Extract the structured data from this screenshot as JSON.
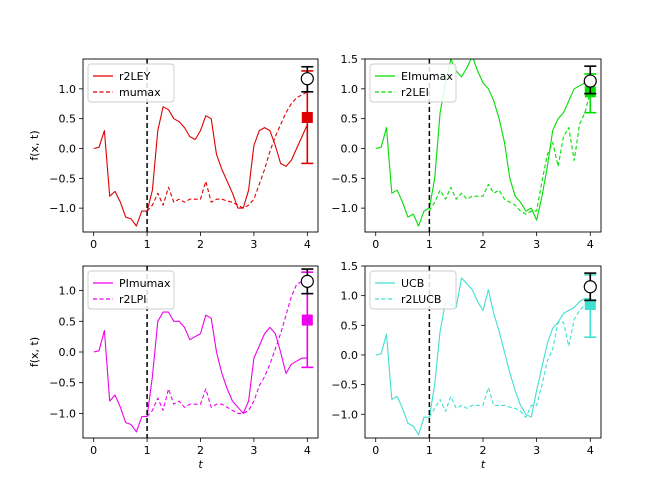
{
  "chart_data": [
    {
      "type": "line",
      "xlabel": "",
      "ylabel": "f(x, t)",
      "xlim": [
        -0.2,
        4.2
      ],
      "ylim": [
        -1.4,
        1.5
      ],
      "xticks": [
        "0",
        "1",
        "2",
        "3",
        "4"
      ],
      "yticks": [
        "−1.0",
        "−0.5",
        "0.0",
        "0.5",
        "1.0"
      ],
      "color": "#dd0000",
      "legend_position": "top-left",
      "vline_x": 1,
      "series": [
        {
          "name": "r2LEY",
          "style": "solid",
          "x": [
            0,
            0.1,
            0.2,
            0.3,
            0.4,
            0.5,
            0.6,
            0.7,
            0.8,
            0.9,
            1.0,
            1.1,
            1.2,
            1.3,
            1.4,
            1.5,
            1.6,
            1.7,
            1.8,
            1.9,
            2.0,
            2.1,
            2.2,
            2.3,
            2.4,
            2.5,
            2.6,
            2.7,
            2.8,
            2.9,
            3.0,
            3.1,
            3.2,
            3.3,
            3.4,
            3.5,
            3.6,
            3.7,
            3.8,
            3.9,
            4.0
          ],
          "y": [
            0.0,
            0.02,
            0.3,
            -0.8,
            -0.72,
            -0.9,
            -1.15,
            -1.18,
            -1.3,
            -1.05,
            -1.05,
            -0.7,
            0.3,
            0.7,
            0.65,
            0.5,
            0.45,
            0.35,
            0.2,
            0.15,
            0.3,
            0.55,
            0.5,
            -0.1,
            -0.35,
            -0.55,
            -0.75,
            -1.0,
            -1.0,
            -0.7,
            0.05,
            0.3,
            0.35,
            0.3,
            0.05,
            -0.25,
            -0.3,
            -0.2,
            0.0,
            0.2,
            0.4
          ]
        },
        {
          "name": "mumax",
          "style": "dashed",
          "x": [
            1.0,
            1.1,
            1.2,
            1.3,
            1.4,
            1.5,
            1.6,
            1.7,
            1.8,
            1.9,
            2.0,
            2.1,
            2.2,
            2.3,
            2.4,
            2.5,
            2.6,
            2.7,
            2.8,
            2.9,
            3.0,
            3.1,
            3.2,
            3.3,
            3.4,
            3.5,
            3.6,
            3.7,
            3.8,
            3.9,
            4.0
          ],
          "y": [
            -1.05,
            -0.95,
            -0.75,
            -0.95,
            -0.65,
            -0.9,
            -0.85,
            -0.9,
            -0.85,
            -0.85,
            -0.85,
            -0.55,
            -0.9,
            -0.85,
            -0.85,
            -0.88,
            -0.9,
            -0.95,
            -1.0,
            -0.95,
            -0.85,
            -0.6,
            -0.35,
            -0.05,
            0.2,
            0.4,
            0.6,
            0.75,
            0.85,
            0.9,
            0.95
          ]
        }
      ],
      "errorbars": [
        {
          "label": "marker-open",
          "x": 4,
          "y": 1.17,
          "low": 0.95,
          "high": 1.37,
          "marker": "circle-open",
          "color": "#000000"
        },
        {
          "label": "marker-filled",
          "x": 4,
          "y": 0.52,
          "low": -0.25,
          "high": 1.3,
          "marker": "square",
          "color": "#dd0000"
        }
      ]
    },
    {
      "type": "line",
      "xlabel": "",
      "ylabel": "",
      "xlim": [
        -0.2,
        4.2
      ],
      "ylim": [
        -1.4,
        1.5
      ],
      "xticks": [
        "0",
        "1",
        "2",
        "3",
        "4"
      ],
      "yticks": [
        "−1.0",
        "−0.5",
        "0.0",
        "0.5",
        "1.0",
        "1.5"
      ],
      "color": "#00dd00",
      "legend_position": "top-left",
      "vline_x": 1,
      "series": [
        {
          "name": "EImumax",
          "style": "solid",
          "x": [
            0,
            0.1,
            0.2,
            0.3,
            0.4,
            0.5,
            0.6,
            0.7,
            0.8,
            0.9,
            1.0,
            1.1,
            1.2,
            1.3,
            1.4,
            1.5,
            1.6,
            1.7,
            1.8,
            1.9,
            2.0,
            2.1,
            2.2,
            2.3,
            2.4,
            2.5,
            2.6,
            2.7,
            2.8,
            2.9,
            3.0,
            3.1,
            3.2,
            3.3,
            3.4,
            3.5,
            3.6,
            3.7,
            3.8,
            3.9,
            4.0
          ],
          "y": [
            0.0,
            0.02,
            0.35,
            -0.75,
            -0.7,
            -0.9,
            -1.15,
            -1.1,
            -1.3,
            -1.05,
            -1.0,
            -0.5,
            0.6,
            1.1,
            1.5,
            1.3,
            1.2,
            1.35,
            1.55,
            1.3,
            1.1,
            1.0,
            0.8,
            0.5,
            0.1,
            -0.5,
            -0.8,
            -0.9,
            -1.05,
            -1.0,
            -1.2,
            -0.8,
            -0.3,
            0.3,
            0.5,
            0.6,
            0.8,
            1.0,
            1.05,
            1.1,
            1.15
          ]
        },
        {
          "name": "r2LEI",
          "style": "dashed",
          "x": [
            1.0,
            1.1,
            1.2,
            1.3,
            1.4,
            1.5,
            1.6,
            1.7,
            1.8,
            1.9,
            2.0,
            2.1,
            2.2,
            2.3,
            2.4,
            2.5,
            2.6,
            2.7,
            2.8,
            2.9,
            3.0,
            3.1,
            3.2,
            3.3,
            3.4,
            3.5,
            3.6,
            3.7,
            3.8,
            3.9,
            4.0
          ],
          "y": [
            -1.05,
            -0.9,
            -0.7,
            -0.85,
            -0.65,
            -0.85,
            -0.75,
            -0.85,
            -0.8,
            -0.8,
            -0.8,
            -0.6,
            -0.75,
            -0.7,
            -0.85,
            -0.9,
            -0.95,
            -1.05,
            -1.1,
            -1.05,
            -1.05,
            -0.55,
            -0.1,
            0.1,
            -0.3,
            0.2,
            0.35,
            -0.2,
            0.4,
            0.6,
            0.95
          ]
        }
      ],
      "errorbars": [
        {
          "label": "marker-open",
          "x": 4,
          "y": 1.13,
          "low": 0.92,
          "high": 1.38,
          "marker": "circle-open",
          "color": "#000000"
        },
        {
          "label": "marker-filled",
          "x": 4,
          "y": 0.95,
          "low": 0.6,
          "high": 1.25,
          "marker": "square",
          "color": "#00dd00"
        }
      ]
    },
    {
      "type": "line",
      "xlabel": "t",
      "ylabel": "f(x, t)",
      "xlim": [
        -0.2,
        4.2
      ],
      "ylim": [
        -1.4,
        1.4
      ],
      "xticks": [
        "0",
        "1",
        "2",
        "3",
        "4"
      ],
      "yticks": [
        "−1.0",
        "−0.5",
        "0.0",
        "0.5",
        "1.0"
      ],
      "color": "#ee00ee",
      "legend_position": "top-left",
      "vline_x": 1,
      "series": [
        {
          "name": "PImumax",
          "style": "solid",
          "x": [
            0,
            0.1,
            0.2,
            0.3,
            0.4,
            0.5,
            0.6,
            0.7,
            0.8,
            0.9,
            1.0,
            1.1,
            1.2,
            1.3,
            1.4,
            1.5,
            1.6,
            1.7,
            1.8,
            1.9,
            2.0,
            2.1,
            2.2,
            2.3,
            2.4,
            2.5,
            2.6,
            2.7,
            2.8,
            2.9,
            3.0,
            3.1,
            3.2,
            3.3,
            3.4,
            3.5,
            3.6,
            3.7,
            3.8,
            3.9,
            4.0
          ],
          "y": [
            0.0,
            0.02,
            0.35,
            -0.8,
            -0.7,
            -0.9,
            -1.15,
            -1.18,
            -1.3,
            -1.05,
            -1.05,
            -0.4,
            0.5,
            0.65,
            0.65,
            0.5,
            0.5,
            0.4,
            0.2,
            0.25,
            0.3,
            0.6,
            0.55,
            0.0,
            -0.35,
            -0.6,
            -0.8,
            -0.9,
            -1.0,
            -0.8,
            -0.1,
            0.1,
            0.3,
            0.4,
            0.3,
            0.0,
            -0.35,
            -0.2,
            -0.15,
            -0.1,
            -0.1
          ]
        },
        {
          "name": "r2LPI",
          "style": "dashed",
          "x": [
            1.0,
            1.1,
            1.2,
            1.3,
            1.4,
            1.5,
            1.6,
            1.7,
            1.8,
            1.9,
            2.0,
            2.1,
            2.2,
            2.3,
            2.4,
            2.5,
            2.6,
            2.7,
            2.8,
            2.9,
            3.0,
            3.1,
            3.2,
            3.3,
            3.4,
            3.5,
            3.6,
            3.7,
            3.8,
            3.9,
            4.0
          ],
          "y": [
            -1.05,
            -0.95,
            -0.75,
            -0.95,
            -0.6,
            -0.85,
            -0.8,
            -0.9,
            -0.85,
            -0.85,
            -0.85,
            -0.6,
            -0.9,
            -0.85,
            -0.85,
            -0.9,
            -0.95,
            -1.0,
            -1.0,
            -0.95,
            -0.8,
            -0.55,
            -0.4,
            -0.2,
            0.05,
            0.3,
            0.6,
            0.9,
            1.1,
            1.15,
            1.2
          ]
        }
      ],
      "errorbars": [
        {
          "label": "marker-open",
          "x": 4,
          "y": 1.15,
          "low": 0.95,
          "high": 1.35,
          "marker": "circle-open",
          "color": "#000000"
        },
        {
          "label": "marker-filled",
          "x": 4,
          "y": 0.52,
          "low": -0.25,
          "high": 1.3,
          "marker": "square",
          "color": "#ee00ee"
        }
      ]
    },
    {
      "type": "line",
      "xlabel": "t",
      "ylabel": "",
      "xlim": [
        -0.2,
        4.2
      ],
      "ylim": [
        -1.4,
        1.5
      ],
      "xticks": [
        "0",
        "1",
        "2",
        "3",
        "4"
      ],
      "yticks": [
        "−1.0",
        "−0.5",
        "0.0",
        "0.5",
        "1.0",
        "1.5"
      ],
      "color": "#40e0d0",
      "legend_position": "top-left",
      "vline_x": 1,
      "series": [
        {
          "name": "UCB",
          "style": "solid",
          "x": [
            0,
            0.1,
            0.2,
            0.3,
            0.4,
            0.5,
            0.6,
            0.7,
            0.8,
            0.9,
            1.0,
            1.1,
            1.2,
            1.3,
            1.4,
            1.5,
            1.6,
            1.7,
            1.8,
            1.9,
            2.0,
            2.1,
            2.2,
            2.3,
            2.4,
            2.5,
            2.6,
            2.7,
            2.8,
            2.9,
            3.0,
            3.1,
            3.2,
            3.3,
            3.4,
            3.5,
            3.6,
            3.7,
            3.8,
            3.9,
            4.0
          ],
          "y": [
            0.0,
            0.02,
            0.35,
            -0.75,
            -0.7,
            -0.9,
            -1.15,
            -1.2,
            -1.35,
            -1.05,
            -1.05,
            -0.5,
            0.4,
            0.9,
            0.85,
            0.8,
            1.3,
            1.2,
            1.1,
            0.9,
            0.75,
            1.1,
            0.7,
            0.4,
            0.05,
            -0.3,
            -0.6,
            -0.85,
            -1.0,
            -1.05,
            -0.6,
            -0.2,
            0.2,
            0.45,
            0.55,
            0.7,
            0.75,
            0.8,
            0.9,
            0.95,
            0.95
          ]
        },
        {
          "name": "r2LUCB",
          "style": "dashed",
          "x": [
            1.0,
            1.1,
            1.2,
            1.3,
            1.4,
            1.5,
            1.6,
            1.7,
            1.8,
            1.9,
            2.0,
            2.1,
            2.2,
            2.3,
            2.4,
            2.5,
            2.6,
            2.7,
            2.8,
            2.9,
            3.0,
            3.1,
            3.2,
            3.3,
            3.4,
            3.5,
            3.6,
            3.7,
            3.8,
            3.9,
            4.0
          ],
          "y": [
            -1.05,
            -0.9,
            -0.75,
            -0.95,
            -0.7,
            -0.9,
            -0.85,
            -0.9,
            -0.85,
            -0.85,
            -0.85,
            -0.55,
            -0.85,
            -0.85,
            -0.85,
            -0.88,
            -0.9,
            -0.95,
            -1.05,
            -0.85,
            -0.85,
            -0.5,
            -0.1,
            0.1,
            0.55,
            0.55,
            0.15,
            0.6,
            0.75,
            0.85,
            0.9
          ]
        }
      ],
      "errorbars": [
        {
          "label": "marker-open",
          "x": 4,
          "y": 1.15,
          "low": 0.92,
          "high": 1.38,
          "marker": "circle-open",
          "color": "#000000"
        },
        {
          "label": "marker-filled",
          "x": 4,
          "y": 0.85,
          "low": 0.3,
          "high": 1.35,
          "marker": "square",
          "color": "#40e0d0"
        }
      ]
    }
  ]
}
